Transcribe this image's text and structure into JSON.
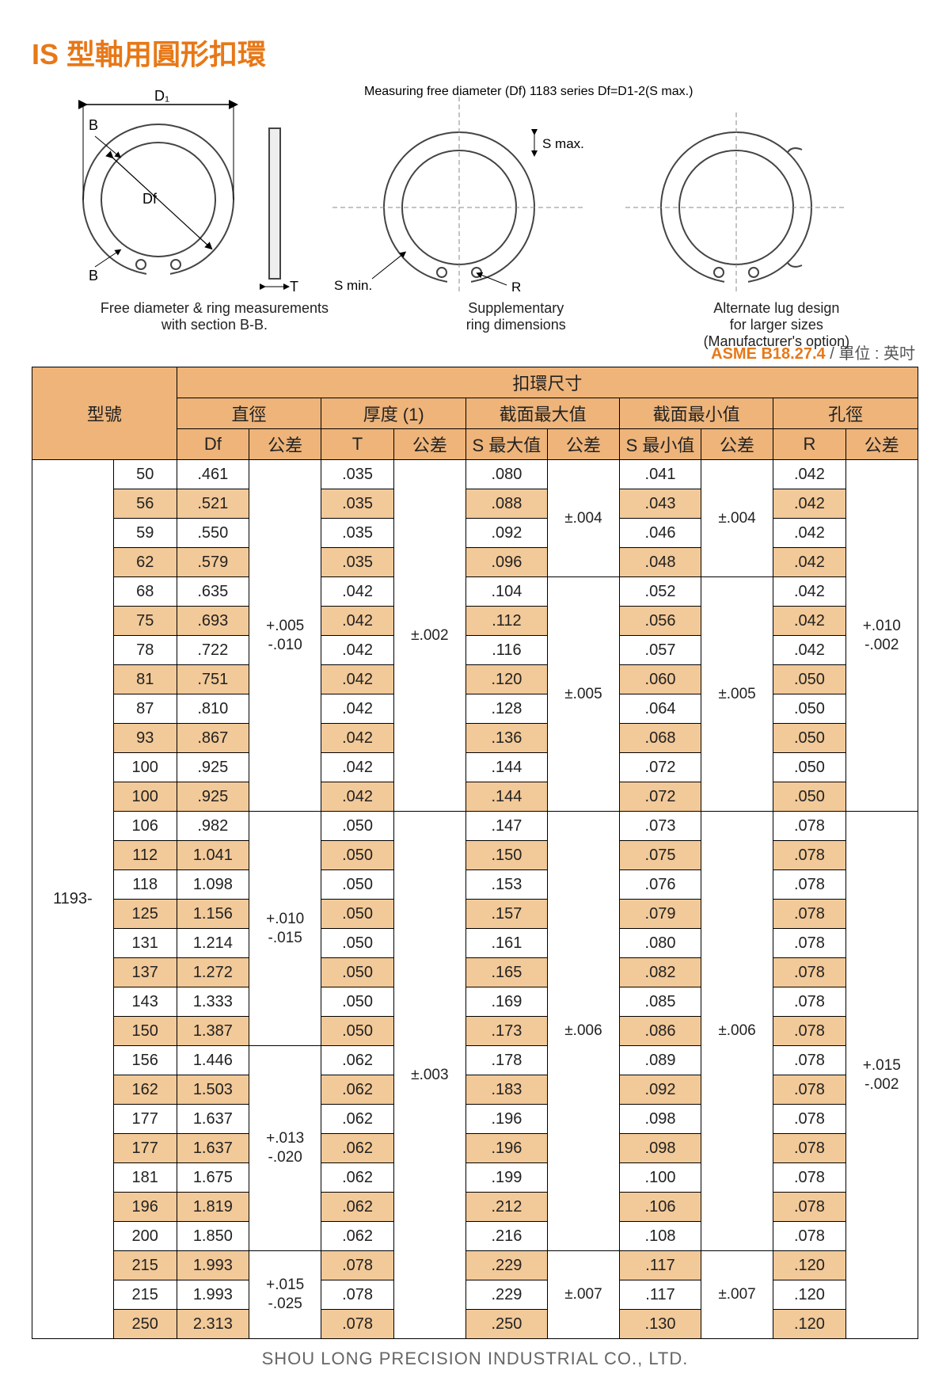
{
  "title": "IS 型軸用圓形扣環",
  "diagram": {
    "label_d1": "D₁",
    "label_b": "B",
    "label_df": "Df",
    "label_t": "T",
    "label_r": "R",
    "label_smax": "S max.",
    "label_smin": "S min.",
    "note_top": "Measuring free diameter (Df)\n1183 series Df=D1-2(S max.)",
    "caption1": "Free diameter & ring measurements\nwith section B-B.",
    "caption2": "Supplementary\nring dimensions",
    "caption3": "Alternate lug design\nfor larger sizes\n(Manufacturer's option)"
  },
  "spec_label": "ASME B18.27.4",
  "unit_label": " / 單位 : 英吋",
  "headers": {
    "model": "型號",
    "ring_dim": "扣環尺寸",
    "dia": "直徑",
    "thick": "厚度 (1)",
    "smax": "截面最大值",
    "smin": "截面最小值",
    "hole": "孔徑",
    "df": "Df",
    "tol": "公差",
    "t": "T",
    "smax_v": "S 最大值",
    "smin_v": "S 最小值",
    "r": "R"
  },
  "model_prefix": "1193-",
  "df_tol_g1": "+.005\n-.010",
  "df_tol_g2": "+.010\n-.015",
  "df_tol_g3": "+.013\n-.020",
  "df_tol_g4": "+.015\n-.025",
  "t_tol_g1": "±.002",
  "t_tol_g2": "±.003",
  "smax_tol_1": "±.004",
  "smax_tol_2": "±.005",
  "smax_tol_3": "±.006",
  "smax_tol_4": "±.007",
  "smin_tol_1": "±.004",
  "smin_tol_2": "±.005",
  "smin_tol_3": "±.006",
  "smin_tol_4": "±.007",
  "r_tol_1": "+.010\n-.002",
  "r_tol_2": "+.015\n-.002",
  "rows": [
    {
      "no": "50",
      "df": ".461",
      "t": ".035",
      "smax": ".080",
      "smin": ".041",
      "r": ".042"
    },
    {
      "no": "56",
      "df": ".521",
      "t": ".035",
      "smax": ".088",
      "smin": ".043",
      "r": ".042"
    },
    {
      "no": "59",
      "df": ".550",
      "t": ".035",
      "smax": ".092",
      "smin": ".046",
      "r": ".042"
    },
    {
      "no": "62",
      "df": ".579",
      "t": ".035",
      "smax": ".096",
      "smin": ".048",
      "r": ".042"
    },
    {
      "no": "68",
      "df": ".635",
      "t": ".042",
      "smax": ".104",
      "smin": ".052",
      "r": ".042"
    },
    {
      "no": "75",
      "df": ".693",
      "t": ".042",
      "smax": ".112",
      "smin": ".056",
      "r": ".042"
    },
    {
      "no": "78",
      "df": ".722",
      "t": ".042",
      "smax": ".116",
      "smin": ".057",
      "r": ".042"
    },
    {
      "no": "81",
      "df": ".751",
      "t": ".042",
      "smax": ".120",
      "smin": ".060",
      "r": ".050"
    },
    {
      "no": "87",
      "df": ".810",
      "t": ".042",
      "smax": ".128",
      "smin": ".064",
      "r": ".050"
    },
    {
      "no": "93",
      "df": ".867",
      "t": ".042",
      "smax": ".136",
      "smin": ".068",
      "r": ".050"
    },
    {
      "no": "100",
      "df": ".925",
      "t": ".042",
      "smax": ".144",
      "smin": ".072",
      "r": ".050"
    },
    {
      "no": "100",
      "df": ".925",
      "t": ".042",
      "smax": ".144",
      "smin": ".072",
      "r": ".050"
    },
    {
      "no": "106",
      "df": ".982",
      "t": ".050",
      "smax": ".147",
      "smin": ".073",
      "r": ".078"
    },
    {
      "no": "112",
      "df": "1.041",
      "t": ".050",
      "smax": ".150",
      "smin": ".075",
      "r": ".078"
    },
    {
      "no": "118",
      "df": "1.098",
      "t": ".050",
      "smax": ".153",
      "smin": ".076",
      "r": ".078"
    },
    {
      "no": "125",
      "df": "1.156",
      "t": ".050",
      "smax": ".157",
      "smin": ".079",
      "r": ".078"
    },
    {
      "no": "131",
      "df": "1.214",
      "t": ".050",
      "smax": ".161",
      "smin": ".080",
      "r": ".078"
    },
    {
      "no": "137",
      "df": "1.272",
      "t": ".050",
      "smax": ".165",
      "smin": ".082",
      "r": ".078"
    },
    {
      "no": "143",
      "df": "1.333",
      "t": ".050",
      "smax": ".169",
      "smin": ".085",
      "r": ".078"
    },
    {
      "no": "150",
      "df": "1.387",
      "t": ".050",
      "smax": ".173",
      "smin": ".086",
      "r": ".078"
    },
    {
      "no": "156",
      "df": "1.446",
      "t": ".062",
      "smax": ".178",
      "smin": ".089",
      "r": ".078"
    },
    {
      "no": "162",
      "df": "1.503",
      "t": ".062",
      "smax": ".183",
      "smin": ".092",
      "r": ".078"
    },
    {
      "no": "177",
      "df": "1.637",
      "t": ".062",
      "smax": ".196",
      "smin": ".098",
      "r": ".078"
    },
    {
      "no": "177",
      "df": "1.637",
      "t": ".062",
      "smax": ".196",
      "smin": ".098",
      "r": ".078"
    },
    {
      "no": "181",
      "df": "1.675",
      "t": ".062",
      "smax": ".199",
      "smin": ".100",
      "r": ".078"
    },
    {
      "no": "196",
      "df": "1.819",
      "t": ".062",
      "smax": ".212",
      "smin": ".106",
      "r": ".078"
    },
    {
      "no": "200",
      "df": "1.850",
      "t": ".062",
      "smax": ".216",
      "smin": ".108",
      "r": ".078"
    },
    {
      "no": "215",
      "df": "1.993",
      "t": ".078",
      "smax": ".229",
      "smin": ".117",
      "r": ".120"
    },
    {
      "no": "215",
      "df": "1.993",
      "t": ".078",
      "smax": ".229",
      "smin": ".117",
      "r": ".120"
    },
    {
      "no": "250",
      "df": "2.313",
      "t": ".078",
      "smax": ".250",
      "smin": ".130",
      "r": ".120"
    }
  ],
  "footer": "SHOU LONG PRECISION INDUSTRIAL CO., LTD.",
  "colors": {
    "accent": "#e77817",
    "header_bg": "#eeb47a",
    "alt_row": "#f2c998",
    "border": "#000000",
    "text": "#222222"
  }
}
